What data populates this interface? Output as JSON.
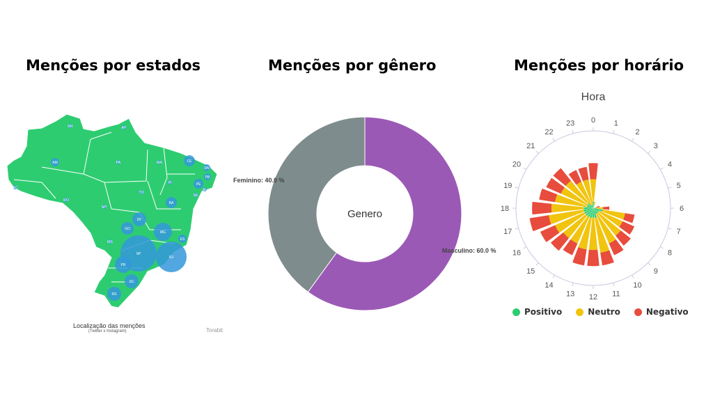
{
  "titles": {
    "states": "Menções por estados",
    "gender": "Menções por gênero",
    "hour": "Menções por horário"
  },
  "map": {
    "caption": "Localização das menções",
    "subcaption": "(Twitter x Instagram)",
    "credit": "Torabit",
    "land_color": "#2ecc71",
    "bubble_color": "#3498db",
    "states": [
      "RR",
      "AP",
      "AM",
      "PA",
      "MA",
      "CE",
      "RN",
      "PB",
      "PE",
      "AL",
      "SE",
      "PI",
      "TO",
      "BA",
      "RO",
      "MT",
      "DF",
      "GO",
      "MG",
      "ES",
      "MS",
      "SP",
      "RJ",
      "PR",
      "SC",
      "RS",
      "AC"
    ]
  },
  "chart_data": [
    {
      "type": "pie",
      "title": "Genero",
      "categories": [
        "Masculino",
        "Feminino"
      ],
      "values": [
        60.0,
        40.0
      ],
      "labels": [
        "Masculino: 60.0 %",
        "Feminino: 40.0 %"
      ],
      "colors": [
        "#9b59b6",
        "#7f8c8d"
      ]
    },
    {
      "type": "bar",
      "polar": true,
      "stacked": true,
      "title": "Hora",
      "categories": [
        "0",
        "1",
        "2",
        "3",
        "4",
        "5",
        "6",
        "7",
        "8",
        "9",
        "10",
        "11",
        "12",
        "13",
        "14",
        "15",
        "16",
        "17",
        "18",
        "19",
        "20",
        "21",
        "22",
        "23"
      ],
      "series": [
        {
          "name": "Positivo",
          "color": "#2ecc71",
          "values": [
            1,
            0.5,
            0,
            0,
            0,
            0,
            0.5,
            1.5,
            1,
            1,
            1,
            1.5,
            1.5,
            1.5,
            1.5,
            1.5,
            1.5,
            1.5,
            1.5,
            1,
            1,
            1,
            0.5,
            0.5
          ]
        },
        {
          "name": "Neutro",
          "color": "#f1c40f",
          "values": [
            3.5,
            0.5,
            0,
            0,
            0,
            0.5,
            1,
            3.5,
            4,
            4.5,
            5,
            5.5,
            5,
            5,
            4.5,
            4.5,
            5,
            5.5,
            5,
            5,
            4.5,
            4.5,
            4,
            4
          ]
        },
        {
          "name": "Negativo",
          "color": "#e74c3c",
          "values": [
            2.5,
            0,
            0,
            0,
            0,
            0.5,
            1,
            1.5,
            2,
            2,
            2,
            2,
            2.5,
            2.5,
            2,
            2.5,
            2.5,
            3,
            3,
            2.5,
            2.5,
            2.5,
            2,
            2
          ]
        }
      ],
      "ylim": [
        0,
        12
      ]
    }
  ]
}
